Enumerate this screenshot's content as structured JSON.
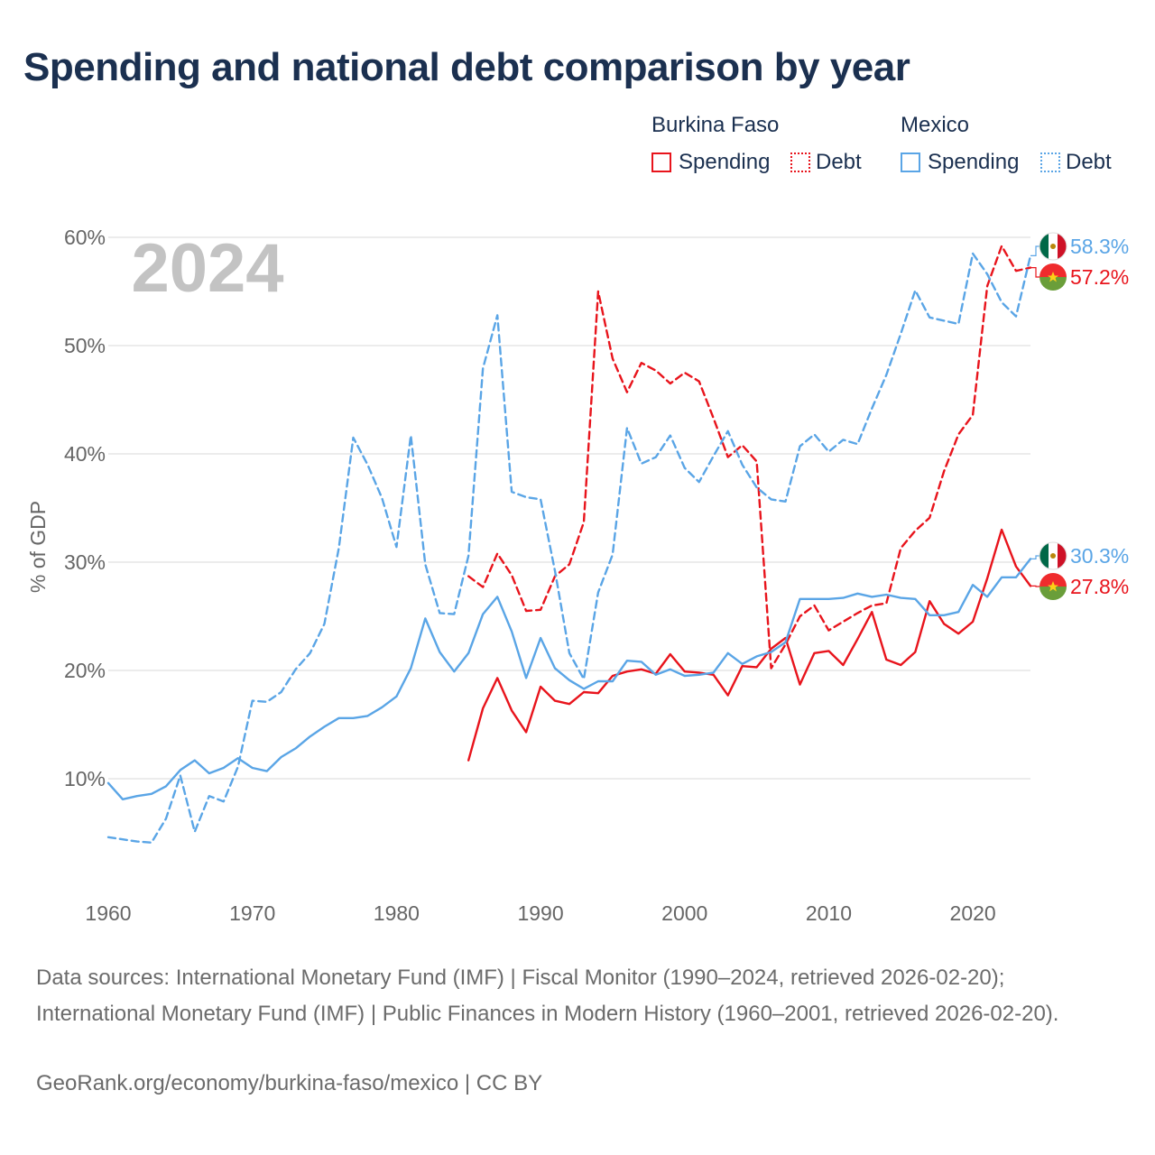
{
  "title": "Spending and national debt comparison by year",
  "year_watermark": "2024",
  "legend": {
    "groups": [
      {
        "name": "Burkina Faso",
        "color": "#e8141c",
        "items": [
          {
            "label": "Spending",
            "style": "solid"
          },
          {
            "label": "Debt",
            "style": "dotted"
          }
        ]
      },
      {
        "name": "Mexico",
        "color": "#5aa5e6",
        "items": [
          {
            "label": "Spending",
            "style": "solid"
          },
          {
            "label": "Debt",
            "style": "dotted"
          }
        ]
      }
    ]
  },
  "chart_data": {
    "type": "line",
    "title": "Spending and national debt comparison by year",
    "xlabel": "",
    "ylabel": "% of GDP",
    "xlim": [
      1960,
      2024
    ],
    "ylim": [
      0,
      60
    ],
    "x_ticks": [
      "1960",
      "1970",
      "1980",
      "1990",
      "2000",
      "2010",
      "2020"
    ],
    "y_ticks": [
      "10%",
      "20%",
      "30%",
      "40%",
      "50%",
      "60%"
    ],
    "grid": true,
    "series": [
      {
        "name": "Burkina Faso Spending",
        "country": "Burkina Faso",
        "metric": "Spending",
        "color": "#e8141c",
        "dash": "solid",
        "start": 1985,
        "values": [
          11.7,
          16.5,
          19.3,
          16.3,
          14.3,
          18.5,
          17.2,
          16.9,
          18.0,
          17.9,
          19.5,
          19.9,
          20.1,
          19.7,
          21.5,
          19.9,
          19.8,
          19.6,
          17.7,
          20.4,
          20.3,
          22.0,
          23.0,
          18.7,
          21.6,
          21.8,
          20.5,
          22.9,
          25.4,
          21.0,
          20.5,
          21.7,
          26.4,
          24.3,
          23.4,
          24.5,
          28.5,
          33.0,
          29.6,
          27.8
        ]
      },
      {
        "name": "Burkina Faso Debt",
        "country": "Burkina Faso",
        "metric": "Debt",
        "color": "#e8141c",
        "dash": "dashed",
        "start": 1985,
        "values": [
          28.7,
          27.7,
          30.8,
          28.8,
          25.5,
          25.6,
          28.7,
          29.8,
          33.7,
          55.0,
          48.8,
          45.7,
          48.4,
          47.7,
          46.5,
          47.5,
          46.7,
          43.3,
          39.7,
          40.8,
          39.3,
          20.2,
          22.4,
          25.0,
          26.0,
          23.7,
          24.5,
          25.3,
          26.0,
          26.2,
          31.3,
          32.9,
          34.1,
          38.4,
          41.8,
          43.6,
          55.5,
          59.2,
          56.9,
          57.2
        ]
      },
      {
        "name": "Mexico Spending",
        "country": "Mexico",
        "metric": "Spending",
        "color": "#5aa5e6",
        "dash": "solid",
        "start": 1960,
        "values": [
          9.6,
          8.1,
          8.4,
          8.6,
          9.3,
          10.8,
          11.7,
          10.5,
          11.0,
          11.9,
          11.0,
          10.7,
          12.0,
          12.8,
          13.9,
          14.8,
          15.6,
          15.6,
          15.8,
          16.6,
          17.6,
          20.2,
          24.8,
          21.7,
          19.9,
          21.6,
          25.2,
          26.8,
          23.6,
          19.3,
          23.0,
          20.2,
          19.1,
          18.3,
          19.0,
          19.0,
          20.9,
          20.8,
          19.6,
          20.1,
          19.5,
          19.6,
          19.8,
          21.6,
          20.6,
          21.3,
          21.7,
          22.6,
          26.6,
          26.6,
          26.6,
          26.7,
          27.1,
          26.8,
          27.0,
          26.7,
          26.6,
          25.1,
          25.1,
          25.4,
          27.9,
          26.8,
          28.6,
          28.6,
          30.3
        ]
      },
      {
        "name": "Mexico Debt",
        "country": "Mexico",
        "metric": "Debt",
        "color": "#5aa5e6",
        "dash": "dashed",
        "start": 1960,
        "values": [
          4.6,
          4.4,
          4.2,
          4.1,
          6.3,
          10.3,
          5.1,
          8.4,
          7.9,
          11.1,
          17.2,
          17.1,
          18.0,
          20.1,
          21.6,
          24.3,
          31.3,
          41.5,
          39.0,
          35.9,
          31.4,
          41.7,
          29.8,
          25.3,
          25.2,
          30.6,
          47.9,
          52.8,
          36.5,
          36.0,
          35.8,
          29.2,
          21.6,
          19.2,
          27.2,
          30.7,
          42.4,
          39.1,
          39.7,
          41.7,
          38.7,
          37.4,
          39.8,
          42.1,
          39.0,
          36.9,
          35.8,
          35.6,
          40.7,
          41.8,
          40.2,
          41.3,
          40.9,
          44.2,
          47.3,
          51.1,
          55.1,
          52.6,
          52.3,
          52.0,
          58.5,
          56.6,
          54.0,
          52.7,
          58.3
        ]
      }
    ],
    "end_labels": [
      {
        "text": "58.3%",
        "color": "#5aa5e6",
        "value": 58.3,
        "country": "Mexico"
      },
      {
        "text": "57.2%",
        "color": "#e8141c",
        "value": 57.2,
        "country": "Burkina Faso"
      },
      {
        "text": "30.3%",
        "color": "#5aa5e6",
        "value": 30.3,
        "country": "Mexico"
      },
      {
        "text": "27.8%",
        "color": "#e8141c",
        "value": 27.8,
        "country": "Burkina Faso"
      }
    ]
  },
  "footer": {
    "sources": "Data sources: International Monetary Fund (IMF) | Fiscal Monitor (1990–2024, retrieved 2026-02-20); International Monetary Fund (IMF) | Public Finances in Modern History (1960–2001, retrieved 2026-02-20).",
    "credit": "GeoRank.org/economy/burkina-faso/mexico | CC BY"
  }
}
